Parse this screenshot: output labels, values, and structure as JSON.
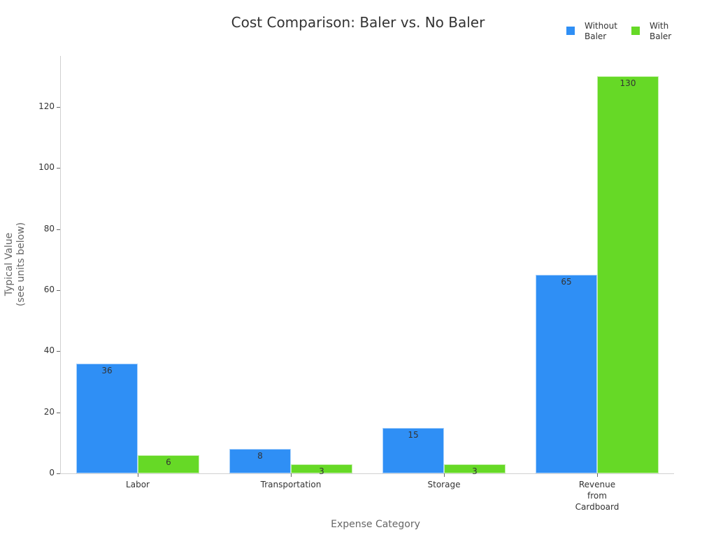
{
  "chart_data": {
    "type": "bar",
    "title": "Cost Comparison: Baler vs. No Baler",
    "xlabel": "Expense Category",
    "ylabel": "Typical Value\n(see units below)",
    "categories": [
      "Labor",
      "Transportation",
      "Storage",
      "Revenue\nfrom\nCardboard"
    ],
    "series": [
      {
        "name": "Without\nBaler",
        "color": "#2f8ff5",
        "values": [
          36,
          8,
          15,
          65
        ]
      },
      {
        "name": "With\nBaler",
        "color": "#66d926",
        "values": [
          6,
          3,
          3,
          130
        ]
      }
    ],
    "yticks": [
      0,
      20,
      40,
      60,
      80,
      100,
      120
    ],
    "ylim": [
      0,
      137
    ],
    "grid": false,
    "legend_position": "top-right"
  }
}
